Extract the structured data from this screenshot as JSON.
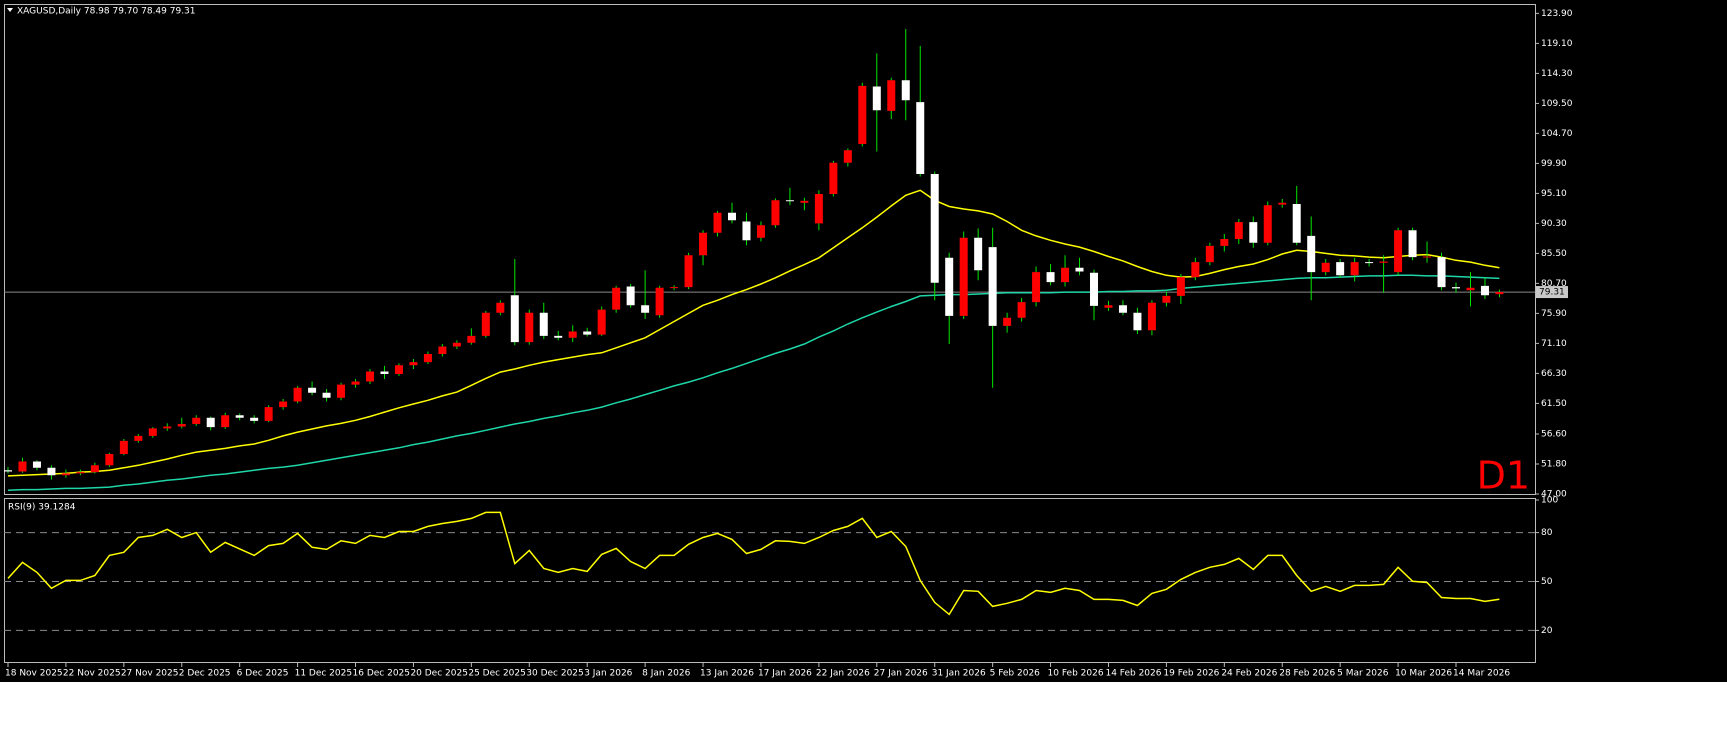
{
  "chart_data": [
    {
      "type": "candlestick",
      "title": "XAGUSD,Daily  78.98 79.70 78.49 79.31",
      "timeframe_label": "D1",
      "categories": [
        "18 Nov 2025",
        null,
        null,
        null,
        "22 Nov 2025",
        null,
        null,
        null,
        "27 Nov 2025",
        null,
        null,
        null,
        "2 Dec 2025",
        null,
        null,
        null,
        "6 Dec 2025",
        null,
        null,
        null,
        "11 Dec 2025",
        null,
        null,
        null,
        "16 Dec 2025",
        null,
        null,
        null,
        "20 Dec 2025",
        null,
        null,
        null,
        "25 Dec 2025",
        null,
        null,
        null,
        "30 Dec 2025",
        null,
        null,
        null,
        "3 Jan 2026",
        null,
        null,
        null,
        "8 Jan 2026",
        null,
        null,
        null,
        "13 Jan 2026",
        null,
        null,
        null,
        "17 Jan 2026",
        null,
        null,
        null,
        "22 Jan 2026",
        null,
        null,
        null,
        "27 Jan 2026",
        null,
        null,
        null,
        "31 Jan 2026",
        null,
        null,
        null,
        "5 Feb 2026",
        null,
        null,
        null,
        "10 Feb 2026",
        null,
        null,
        null,
        "14 Feb 2026",
        null,
        null,
        null,
        "19 Feb 2026",
        null,
        null,
        null,
        "24 Feb 2026",
        null,
        null,
        null,
        "28 Feb 2026",
        null,
        null,
        null,
        "5 Mar 2026",
        null,
        null,
        null,
        "10 Mar 2026",
        null,
        null,
        null,
        "14 Mar 2026",
        null,
        null,
        null
      ],
      "open": [
        50.8,
        50.6,
        52.2,
        51.2,
        50.0,
        50.3,
        50.5,
        51.6,
        53.4,
        55.5,
        56.3,
        57.5,
        57.8,
        58.2,
        59.2,
        57.7,
        59.6,
        59.2,
        58.7,
        60.9,
        61.8,
        64.0,
        63.2,
        62.4,
        64.5,
        65.0,
        66.6,
        66.2,
        67.6,
        68.1,
        69.4,
        70.6,
        71.2,
        72.3,
        76.0,
        78.8,
        71.3,
        76.0,
        72.3,
        72.0,
        73.0,
        72.5,
        76.5,
        80.2,
        77.2,
        75.6,
        80.0,
        80.1,
        85.2,
        88.8,
        92.0,
        90.6,
        88.0,
        90.0,
        94.0,
        93.6,
        90.3,
        95.0,
        100.0,
        103.0,
        112.2,
        108.3,
        113.2,
        109.7,
        98.2,
        84.8,
        75.5,
        88.0,
        86.5,
        73.9,
        75.2,
        77.7,
        82.5,
        80.9,
        83.2,
        82.4,
        76.8,
        77.2,
        76.0,
        73.2,
        77.6,
        78.7,
        81.7,
        84.1,
        86.7,
        87.8,
        90.5,
        87.2,
        93.3,
        93.4,
        88.3,
        82.5,
        84.1,
        82.0,
        84.1,
        84.0,
        82.5,
        89.2,
        84.9,
        84.9,
        80.1,
        79.6,
        80.3,
        78.98
      ],
      "high": [
        51.3,
        52.8,
        52.4,
        51.6,
        50.9,
        50.9,
        52.0,
        53.6,
        55.8,
        56.6,
        57.7,
        58.3,
        59.2,
        59.6,
        59.4,
        60.0,
        59.9,
        59.6,
        61.2,
        62.2,
        64.3,
        65.0,
        63.8,
        64.8,
        65.4,
        67.0,
        67.5,
        67.9,
        68.6,
        69.8,
        71.0,
        71.6,
        73.5,
        76.3,
        78.0,
        84.6,
        76.5,
        77.6,
        73.1,
        74.0,
        73.6,
        77.0,
        80.3,
        80.6,
        82.8,
        80.3,
        80.4,
        85.6,
        89.2,
        92.3,
        93.6,
        92.0,
        90.6,
        94.3,
        96.0,
        94.4,
        95.6,
        100.3,
        102.3,
        112.8,
        117.5,
        113.6,
        121.4,
        118.7,
        98.6,
        85.6,
        89.0,
        89.5,
        89.6,
        76.0,
        78.4,
        83.4,
        83.8,
        85.2,
        84.8,
        82.9,
        77.9,
        78.0,
        76.8,
        78.0,
        79.4,
        82.2,
        84.8,
        87.2,
        88.6,
        91.0,
        91.4,
        93.8,
        94.2,
        96.3,
        91.4,
        84.6,
        84.6,
        84.8,
        84.6,
        85.2,
        89.6,
        89.6,
        87.4,
        85.6,
        80.8,
        82.5,
        81.5,
        79.7
      ],
      "low": [
        50.3,
        50.4,
        50.8,
        49.3,
        49.6,
        50.0,
        50.3,
        51.3,
        53.2,
        55.2,
        56.0,
        57.1,
        57.5,
        57.9,
        57.2,
        57.4,
        58.8,
        58.3,
        58.5,
        60.5,
        61.5,
        62.8,
        61.8,
        62.0,
        64.0,
        64.6,
        65.4,
        65.9,
        67.0,
        67.8,
        69.0,
        70.2,
        70.9,
        72.0,
        75.6,
        70.8,
        70.9,
        71.8,
        71.6,
        71.3,
        72.2,
        72.3,
        76.0,
        76.8,
        75.0,
        75.2,
        79.6,
        79.8,
        83.6,
        88.2,
        90.3,
        86.8,
        87.4,
        89.6,
        93.2,
        92.4,
        89.2,
        94.6,
        99.4,
        102.6,
        101.8,
        107.0,
        106.8,
        97.8,
        78.0,
        71.0,
        75.0,
        81.2,
        64.0,
        72.8,
        74.6,
        77.0,
        80.4,
        80.2,
        82.0,
        74.8,
        76.3,
        75.6,
        72.6,
        72.4,
        77.0,
        77.4,
        81.2,
        83.6,
        85.8,
        87.0,
        86.4,
        86.8,
        92.8,
        86.8,
        78.0,
        82.0,
        81.6,
        81.0,
        83.4,
        79.2,
        82.0,
        84.4,
        84.0,
        79.6,
        79.2,
        77.0,
        78.2,
        78.49
      ],
      "close": [
        50.6,
        52.2,
        51.2,
        50.0,
        50.3,
        50.5,
        51.6,
        53.4,
        55.5,
        56.3,
        57.5,
        57.8,
        58.2,
        59.2,
        57.7,
        59.6,
        59.2,
        58.7,
        60.9,
        61.8,
        64.0,
        63.2,
        62.4,
        64.5,
        65.0,
        66.6,
        66.2,
        67.6,
        68.1,
        69.4,
        70.6,
        71.2,
        72.3,
        76.0,
        77.6,
        71.3,
        76.0,
        72.3,
        72.0,
        73.0,
        72.5,
        76.5,
        80.0,
        77.2,
        76.0,
        80.0,
        80.1,
        85.2,
        88.8,
        92.0,
        90.8,
        87.6,
        90.0,
        94.0,
        93.9,
        93.9,
        95.0,
        100.0,
        102.0,
        112.3,
        108.4,
        113.2,
        110.0,
        98.2,
        80.8,
        75.5,
        88.0,
        82.8,
        73.9,
        75.2,
        77.7,
        82.5,
        80.9,
        83.2,
        82.6,
        77.1,
        77.2,
        76.0,
        73.2,
        77.6,
        78.7,
        81.7,
        84.1,
        86.7,
        87.8,
        90.5,
        87.2,
        93.2,
        93.6,
        87.2,
        82.5,
        84.0,
        82.0,
        84.1,
        84.0,
        84.2,
        89.2,
        84.9,
        85.0,
        80.1,
        79.9,
        80.0,
        78.8,
        79.31
      ],
      "up_color": "#ff0000",
      "down_color": "#ffffff",
      "wick_color": "#00e600",
      "moving_averages": [
        {
          "color": "#ffff00",
          "values": [
            49.9,
            50.0,
            50.1,
            50.2,
            50.3,
            50.5,
            50.6,
            50.8,
            51.2,
            51.6,
            52.1,
            52.6,
            53.2,
            53.7,
            54.0,
            54.3,
            54.7,
            55.0,
            55.6,
            56.3,
            56.9,
            57.4,
            57.9,
            58.3,
            58.8,
            59.4,
            60.1,
            60.8,
            61.4,
            62.0,
            62.7,
            63.3,
            64.4,
            65.5,
            66.5,
            67.0,
            67.6,
            68.1,
            68.5,
            68.9,
            69.3,
            69.6,
            70.4,
            71.2,
            72.0,
            73.3,
            74.6,
            75.9,
            77.2,
            78.0,
            78.9,
            79.7,
            80.6,
            81.6,
            82.7,
            83.7,
            84.8,
            86.4,
            88.0,
            89.6,
            91.3,
            93.1,
            94.8,
            95.6,
            94.0,
            93.0,
            92.6,
            92.3,
            91.8,
            90.6,
            89.2,
            88.3,
            87.6,
            87.0,
            86.5,
            85.8,
            85.0,
            84.3,
            83.4,
            82.6,
            82.0,
            81.7,
            81.8,
            82.3,
            82.9,
            83.4,
            83.8,
            84.5,
            85.4,
            86.0,
            85.8,
            85.5,
            85.2,
            85.1,
            84.9,
            84.8,
            85.0,
            85.2,
            85.3,
            84.9,
            84.4,
            84.1,
            83.6,
            83.2
          ]
        },
        {
          "color": "#1ed6a8",
          "values": [
            47.6,
            47.7,
            47.7,
            47.8,
            47.9,
            47.9,
            48.0,
            48.1,
            48.4,
            48.6,
            48.9,
            49.2,
            49.4,
            49.7,
            50.0,
            50.2,
            50.5,
            50.8,
            51.1,
            51.3,
            51.6,
            52.0,
            52.4,
            52.8,
            53.2,
            53.6,
            54.0,
            54.4,
            54.9,
            55.3,
            55.8,
            56.3,
            56.7,
            57.2,
            57.7,
            58.2,
            58.6,
            59.1,
            59.5,
            60.0,
            60.4,
            60.9,
            61.6,
            62.2,
            62.9,
            63.6,
            64.3,
            64.9,
            65.6,
            66.4,
            67.1,
            67.9,
            68.7,
            69.5,
            70.2,
            71.0,
            72.1,
            73.1,
            74.2,
            75.2,
            76.1,
            77.0,
            77.8,
            78.7,
            78.8,
            78.9,
            78.9,
            79.0,
            79.1,
            79.2,
            79.2,
            79.2,
            79.2,
            79.3,
            79.3,
            79.3,
            79.4,
            79.4,
            79.5,
            79.5,
            79.6,
            79.9,
            80.1,
            80.3,
            80.5,
            80.7,
            80.9,
            81.1,
            81.3,
            81.5,
            81.6,
            81.6,
            81.7,
            81.8,
            81.9,
            81.9,
            82.0,
            82.0,
            81.9,
            81.9,
            81.8,
            81.7,
            81.6,
            81.5
          ]
        }
      ],
      "price_line": {
        "value": 79.31,
        "label": "79.31"
      },
      "ylim": [
        47.0,
        125.4
      ],
      "yticks": [
        {
          "value": 123.9,
          "label": "123.90"
        },
        {
          "value": 119.1,
          "label": "119.10"
        },
        {
          "value": 114.3,
          "label": "114.30"
        },
        {
          "value": 109.5,
          "label": "109.50"
        },
        {
          "value": 104.7,
          "label": "104.70"
        },
        {
          "value": 99.9,
          "label": "99.90"
        },
        {
          "value": 95.1,
          "label": "95.10"
        },
        {
          "value": 90.3,
          "label": "90.30"
        },
        {
          "value": 85.5,
          "label": "85.50"
        },
        {
          "value": 80.7,
          "label": "80.70"
        },
        {
          "value": 75.9,
          "label": "75.90"
        },
        {
          "value": 71.1,
          "label": "71.10"
        },
        {
          "value": 66.3,
          "label": "66.30"
        },
        {
          "value": 61.5,
          "label": "61.50"
        },
        {
          "value": 56.6,
          "label": "56.60"
        },
        {
          "value": 51.8,
          "label": "51.80"
        },
        {
          "value": 47.0,
          "label": "47.00"
        }
      ],
      "grid": false
    },
    {
      "type": "line",
      "title": "RSI(9) 39.1284",
      "color": "#ffff00",
      "values": [
        51.9,
        61.7,
        55.6,
        45.8,
        50.7,
        50.7,
        53.7,
        66,
        67.9,
        77,
        78.3,
        82,
        77,
        80,
        68,
        74,
        70,
        66,
        72,
        73.4,
        79.5,
        71,
        69.7,
        75,
        73.4,
        78.3,
        77,
        80.7,
        80.7,
        83.8,
        85.6,
        86.9,
        88.7,
        92.4,
        92.4,
        61,
        69,
        58,
        55.6,
        58,
        56.2,
        66.6,
        70.3,
        62.3,
        58,
        66,
        66,
        72.8,
        77,
        79.5,
        75.8,
        67.2,
        69.7,
        75,
        74.6,
        73.4,
        77,
        81.3,
        83.8,
        88.7,
        77,
        80.7,
        71.5,
        50.7,
        37.2,
        29.8,
        44.5,
        44,
        34.7,
        36.6,
        39,
        44.5,
        43.3,
        45.8,
        44.5,
        39,
        39,
        38.4,
        35.3,
        42.7,
        45.2,
        51.3,
        55.6,
        58.7,
        60.5,
        64.2,
        57.4,
        66,
        66,
        53.7,
        44,
        47,
        44,
        47.6,
        47.6,
        48.2,
        58.7,
        50.1,
        49.4,
        40.2,
        39.6,
        39.6,
        37.8,
        39.1284
      ],
      "ylim": [
        0,
        100
      ],
      "yticks": [
        20,
        50,
        80,
        100
      ],
      "levels": [
        20,
        50,
        80
      ]
    }
  ]
}
